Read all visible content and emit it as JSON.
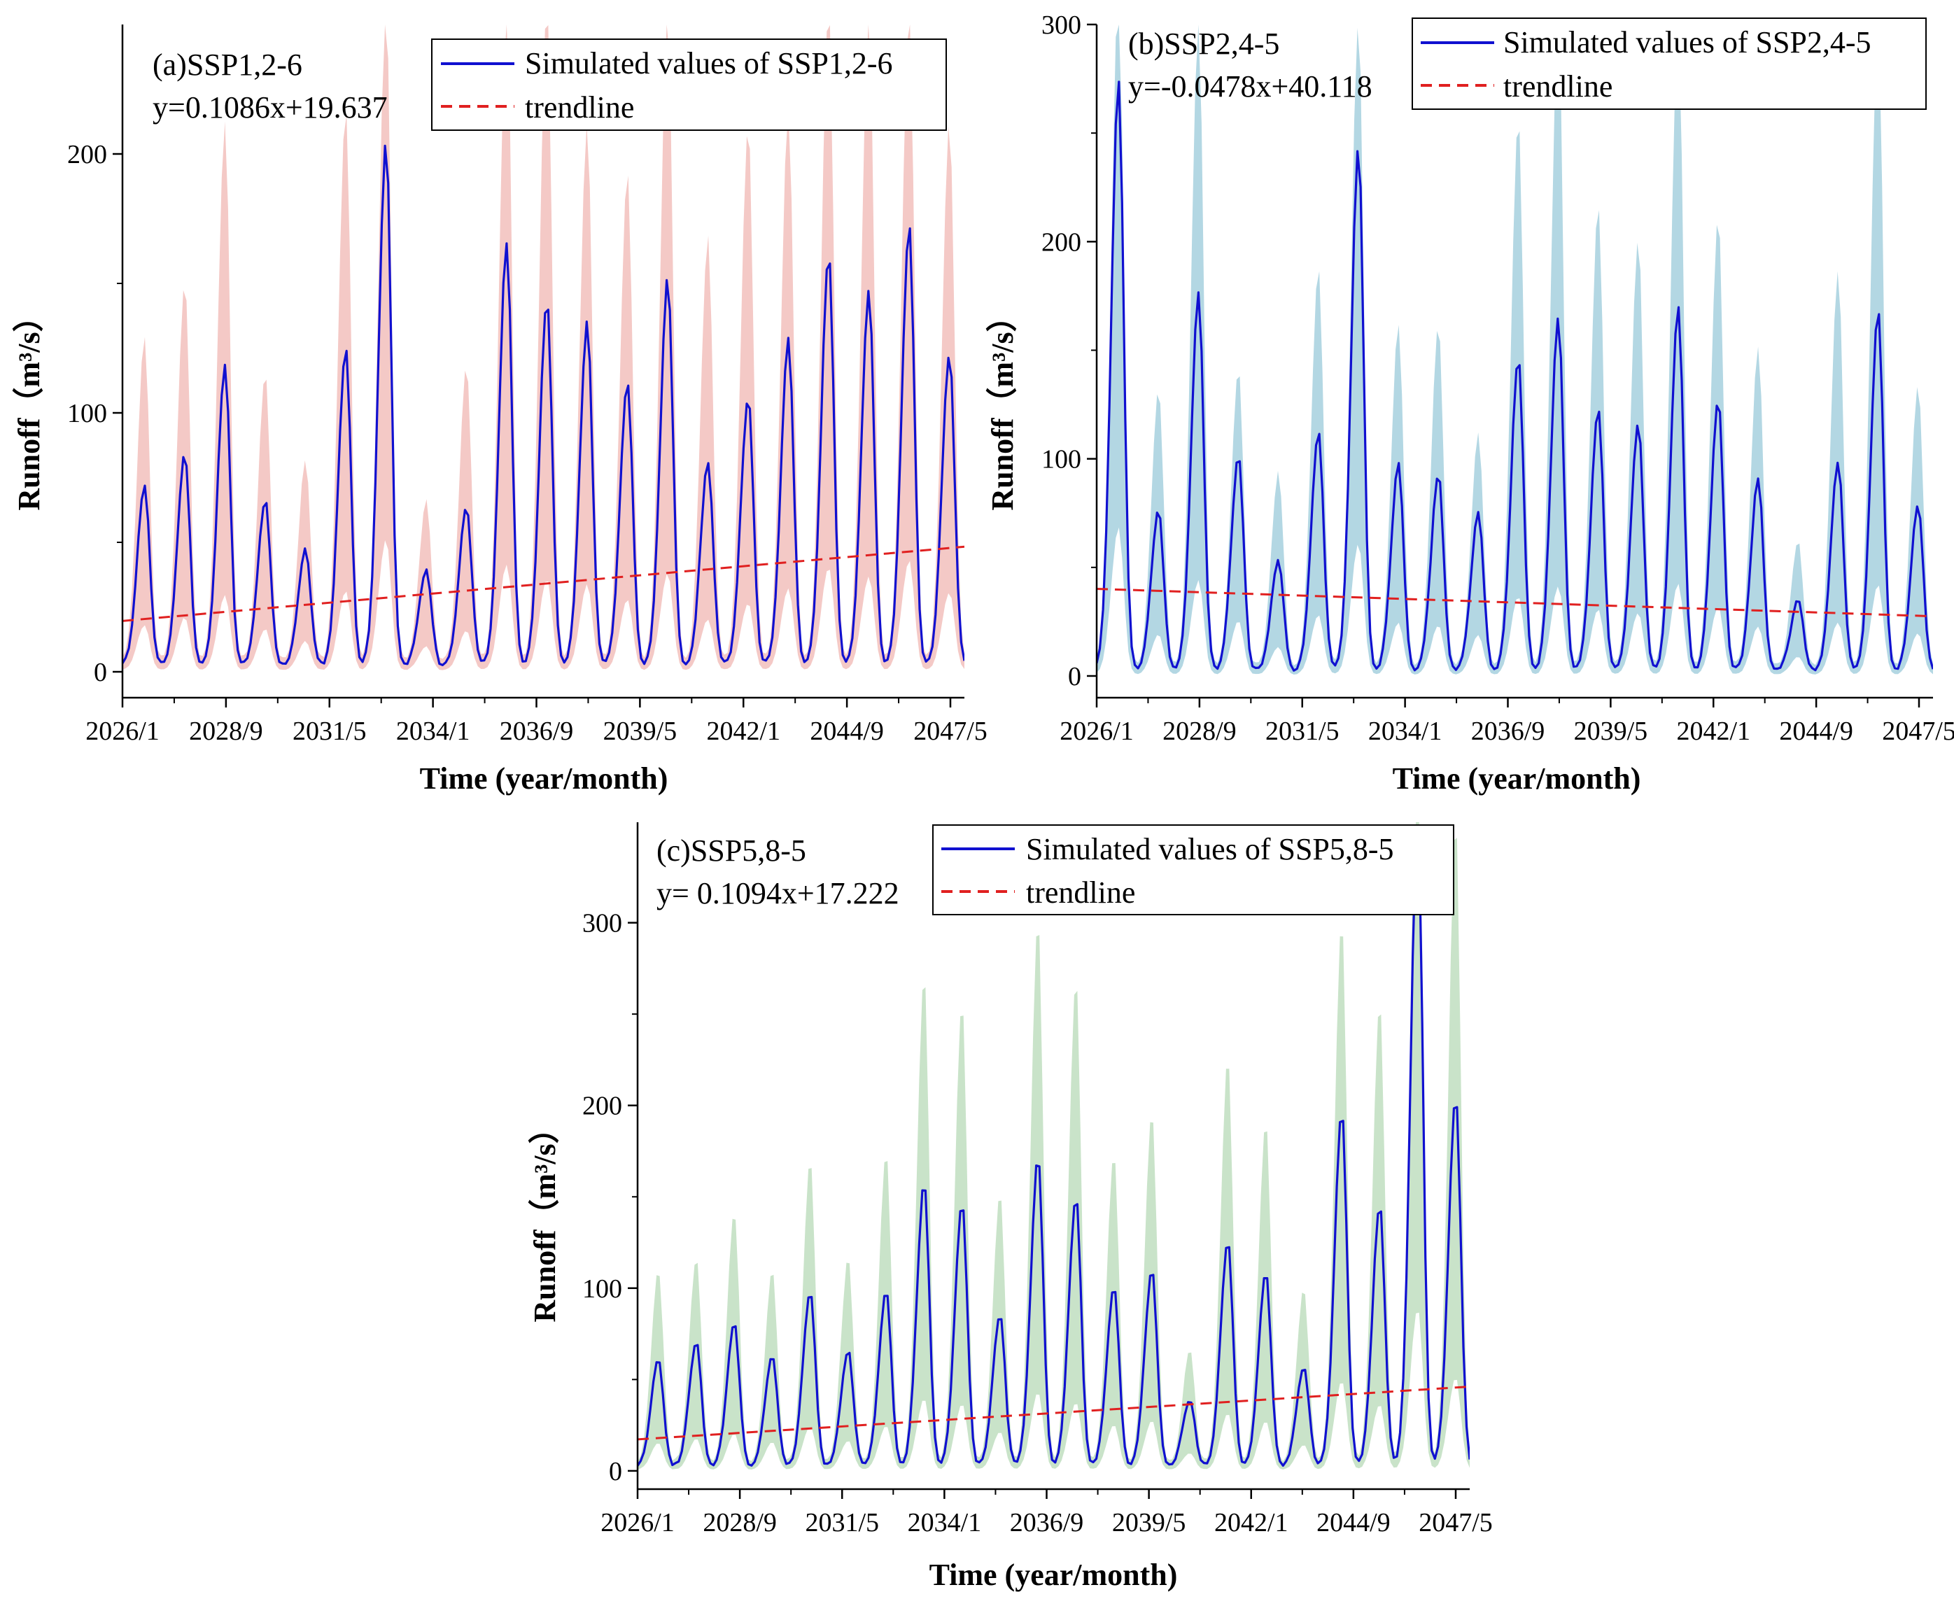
{
  "chart_data": [
    {
      "id": "a",
      "type": "line",
      "panel_label": "(a)SSP1,2-6",
      "equation": "y=0.1086x+19.637",
      "xlabel": "Time (year/month)",
      "ylabel": "Runoff（m³/s）",
      "xticks": [
        "2026/1",
        "2028/9",
        "2031/5",
        "2034/1",
        "2036/9",
        "2039/5",
        "2042/1",
        "2044/9",
        "2047/5"
      ],
      "ylim": [
        -10,
        250
      ],
      "yticks": [
        0,
        100,
        200
      ],
      "minor_yticks": [
        50,
        150
      ],
      "legend": [
        "Simulated values of SSP1,2-6",
        "trendline"
      ],
      "band_color": "#f4c9c6",
      "line_color": "#1010d0",
      "trend_color": "#e02020",
      "trend": {
        "slope": 0.1086,
        "intercept": 19.637
      },
      "n_months": 264,
      "seasonal_peaks": [
        70,
        82,
        117,
        64,
        45,
        123,
        203,
        37,
        62,
        164,
        142,
        133,
        110,
        150,
        79,
        104,
        127,
        159,
        146,
        170,
        121
      ],
      "band_upper_peaks": [
        127,
        148,
        210,
        113,
        80,
        215,
        255,
        64,
        116,
        255,
        255,
        210,
        191,
        255,
        166,
        210,
        215,
        255,
        255,
        255,
        210
      ]
    },
    {
      "id": "b",
      "type": "line",
      "panel_label": "(b)SSP2,4-5",
      "equation": "y=-0.0478x+40.118",
      "xlabel": "Time (year/month)",
      "ylabel": "Runoff（m³/s）",
      "xticks": [
        "2026/1",
        "2028/9",
        "2031/5",
        "2034/1",
        "2036/9",
        "2039/5",
        "2042/1",
        "2044/9",
        "2047/5"
      ],
      "ylim": [
        -10,
        300
      ],
      "yticks": [
        0,
        100,
        200,
        300
      ],
      "minor_yticks": [
        50,
        150,
        250
      ],
      "legend": [
        "Simulated values of SSP2,4-5",
        "trendline"
      ],
      "band_color": "#b3d7e3",
      "line_color": "#1010d0",
      "trend_color": "#e02020",
      "trend": {
        "slope": -0.0478,
        "intercept": 40.118
      },
      "n_months": 264,
      "seasonal_peaks": [
        272,
        74,
        175,
        99,
        51,
        110,
        242,
        96,
        91,
        73,
        145,
        163,
        121,
        115,
        168,
        125,
        89,
        33,
        97,
        166,
        77
      ],
      "band_upper_peaks": [
        300,
        130,
        300,
        140,
        92,
        186,
        300,
        160,
        160,
        110,
        255,
        300,
        215,
        200,
        300,
        210,
        150,
        60,
        185,
        300,
        132
      ]
    },
    {
      "id": "c",
      "type": "line",
      "panel_label": "(c)SSP5,8-5",
      "equation": "y= 0.1094x+17.222",
      "xlabel": "Time (year/month)",
      "ylabel": "Runoff（m³/s）",
      "xticks": [
        "2026/1",
        "2028/9",
        "2031/5",
        "2034/1",
        "2036/9",
        "2039/5",
        "2042/1",
        "2044/9",
        "2047/5"
      ],
      "ylim": [
        -10,
        355
      ],
      "yticks": [
        0,
        100,
        200,
        300
      ],
      "minor_yticks": [
        50,
        150,
        250
      ],
      "legend": [
        "Simulated values of SSP5,8-5",
        "trendline"
      ],
      "band_color": "#c9e3c9",
      "line_color": "#1010d0",
      "trend_color": "#e02020",
      "trend": {
        "slope": 0.1094,
        "intercept": 17.222
      },
      "n_months": 264,
      "seasonal_peaks": [
        59,
        68,
        79,
        61,
        96,
        64,
        96,
        156,
        145,
        84,
        170,
        148,
        98,
        108,
        36,
        124,
        106,
        55,
        195,
        144,
        355,
        203
      ],
      "band_upper_peaks": [
        108,
        115,
        140,
        108,
        168,
        115,
        172,
        270,
        255,
        150,
        300,
        268,
        172,
        195,
        65,
        225,
        190,
        98,
        300,
        255,
        355,
        355
      ]
    }
  ]
}
